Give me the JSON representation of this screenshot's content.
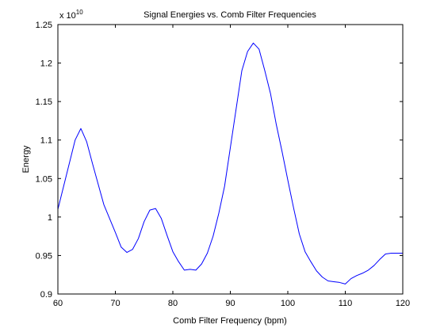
{
  "chart_data": {
    "type": "line",
    "title": "Signal Energies vs. Comb Filter Frequencies",
    "xlabel": "Comb Filter Frequency (bpm)",
    "ylabel": "Energy",
    "y_multiplier_base": "x 10",
    "y_multiplier_exponent": "10",
    "xlim": [
      60,
      120
    ],
    "ylim": [
      0.9,
      1.25
    ],
    "xticks": [
      60,
      70,
      80,
      90,
      100,
      110,
      120
    ],
    "xtick_labels": [
      "60",
      "70",
      "80",
      "90",
      "100",
      "110",
      "120"
    ],
    "yticks": [
      0.9,
      0.95,
      1.0,
      1.05,
      1.1,
      1.15,
      1.2,
      1.25
    ],
    "ytick_labels": [
      "0.9",
      "0.95",
      "1",
      "1.05",
      "1.1",
      "1.15",
      "1.2",
      "1.25"
    ],
    "grid": false,
    "line_color": "#0000ff",
    "series": [
      {
        "x": [
          60,
          61,
          62,
          63,
          64,
          65,
          66,
          67,
          68,
          69,
          70,
          71,
          72,
          73,
          74,
          75,
          76,
          77,
          78,
          79,
          80,
          81,
          82,
          83,
          84,
          85,
          86,
          87,
          88,
          89,
          90,
          91,
          92,
          93,
          94,
          95,
          96,
          97,
          98,
          99,
          100,
          101,
          102,
          103,
          104,
          105,
          106,
          107,
          108,
          109,
          110,
          111,
          112,
          113,
          114,
          115,
          116,
          117,
          118,
          119,
          120
        ],
        "y": [
          1.01,
          1.04,
          1.07,
          1.1,
          1.115,
          1.098,
          1.07,
          1.043,
          1.016,
          0.998,
          0.98,
          0.961,
          0.954,
          0.958,
          0.972,
          0.994,
          1.009,
          1.011,
          0.998,
          0.976,
          0.955,
          0.942,
          0.931,
          0.932,
          0.931,
          0.939,
          0.953,
          0.975,
          1.005,
          1.04,
          1.09,
          1.14,
          1.19,
          1.215,
          1.226,
          1.218,
          1.19,
          1.16,
          1.12,
          1.085,
          1.048,
          1.012,
          0.978,
          0.955,
          0.942,
          0.93,
          0.922,
          0.917,
          0.916,
          0.915,
          0.913,
          0.92,
          0.924,
          0.927,
          0.931,
          0.937,
          0.945,
          0.952,
          0.953,
          0.953,
          0.953
        ]
      }
    ]
  }
}
